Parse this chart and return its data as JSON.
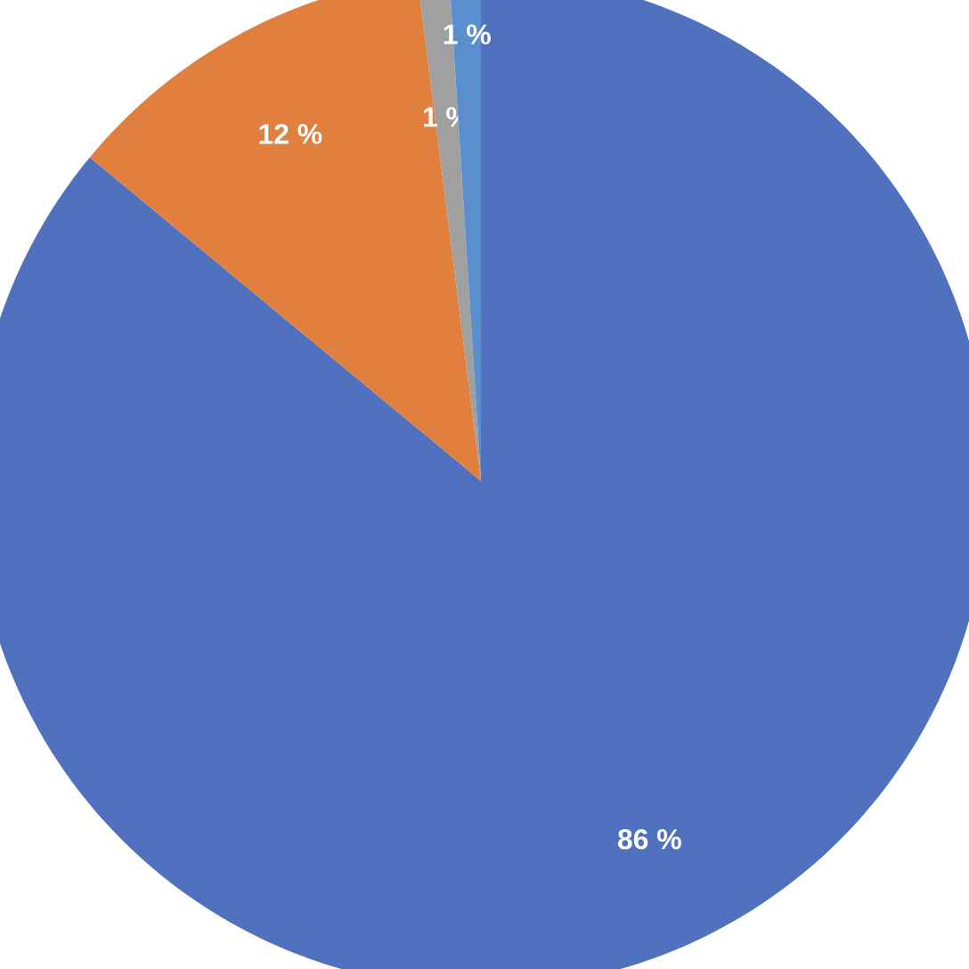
{
  "chart_data": {
    "type": "pie",
    "categories": [
      null,
      null,
      null,
      null
    ],
    "values": [
      86,
      12,
      1,
      1
    ],
    "colors": [
      "#4f71be",
      "#e07f3e",
      "#a0a0a0",
      "#5a8fcd"
    ],
    "value_labels": [
      "86 %",
      "12 %",
      "1 %",
      "1 %"
    ]
  }
}
